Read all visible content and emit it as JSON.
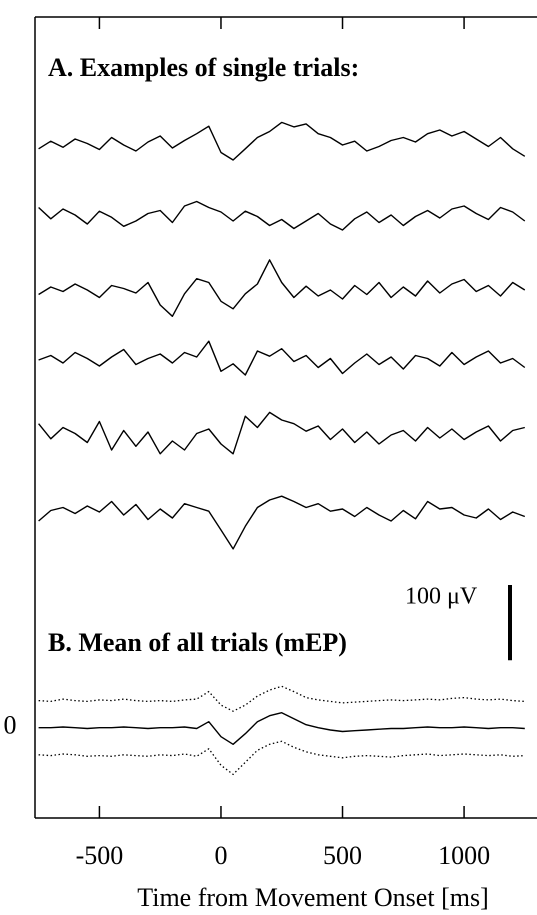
{
  "chart_data": [
    {
      "type": "line",
      "title": "A. Examples of single trials:",
      "x": [
        -750,
        -700,
        -650,
        -600,
        -550,
        -500,
        -450,
        -400,
        -350,
        -300,
        -250,
        -200,
        -150,
        -100,
        -50,
        0,
        50,
        100,
        150,
        200,
        250,
        300,
        350,
        400,
        450,
        500,
        550,
        600,
        650,
        700,
        750,
        800,
        850,
        900,
        950,
        1000,
        1050,
        1100,
        1150,
        1200,
        1250
      ],
      "xlim": [
        -765,
        1300
      ],
      "series": [
        {
          "color": "#000000",
          "values": [
            -5,
            5,
            -3,
            8,
            2,
            -6,
            10,
            0,
            -8,
            4,
            12,
            -4,
            6,
            15,
            25,
            -10,
            -20,
            -5,
            10,
            18,
            30,
            24,
            28,
            15,
            10,
            0,
            5,
            -8,
            -2,
            6,
            10,
            4,
            15,
            20,
            12,
            18,
            8,
            -2,
            10,
            -5,
            -15
          ]
        },
        {
          "color": "#000000",
          "values": [
            10,
            -5,
            8,
            0,
            -12,
            5,
            -3,
            -15,
            -8,
            2,
            6,
            -10,
            12,
            18,
            10,
            4,
            -8,
            5,
            -2,
            -14,
            -6,
            -18,
            -8,
            2,
            -12,
            -20,
            -5,
            4,
            -10,
            0,
            -14,
            -2,
            6,
            -4,
            8,
            12,
            2,
            -6,
            10,
            4,
            -8
          ]
        },
        {
          "color": "#000000",
          "values": [
            -6,
            4,
            -2,
            8,
            0,
            -10,
            6,
            2,
            -4,
            10,
            -20,
            -35,
            -5,
            15,
            10,
            -15,
            -25,
            -5,
            8,
            40,
            10,
            -10,
            5,
            -8,
            0,
            -12,
            6,
            -6,
            10,
            -10,
            4,
            -8,
            12,
            -4,
            8,
            14,
            -2,
            6,
            -8,
            10,
            0
          ]
        },
        {
          "color": "#000000",
          "values": [
            0,
            6,
            -4,
            10,
            2,
            -8,
            4,
            14,
            -6,
            2,
            8,
            -4,
            10,
            4,
            25,
            -15,
            -5,
            -20,
            12,
            5,
            15,
            -2,
            6,
            -10,
            2,
            -18,
            -4,
            8,
            -6,
            4,
            -12,
            6,
            2,
            -8,
            10,
            -6,
            4,
            12,
            -4,
            2,
            -10
          ]
        },
        {
          "color": "#000000",
          "values": [
            15,
            -5,
            10,
            2,
            -10,
            18,
            -20,
            6,
            -15,
            4,
            -25,
            -8,
            -20,
            2,
            8,
            -12,
            -25,
            25,
            10,
            30,
            20,
            15,
            5,
            12,
            -6,
            8,
            -10,
            4,
            -12,
            0,
            6,
            -8,
            10,
            -4,
            8,
            -6,
            4,
            12,
            -8,
            6,
            10
          ]
        },
        {
          "color": "#000000",
          "values": [
            -8,
            6,
            10,
            2,
            12,
            4,
            18,
            0,
            14,
            -6,
            8,
            -4,
            15,
            10,
            5,
            -20,
            -45,
            -15,
            10,
            20,
            25,
            18,
            10,
            15,
            5,
            8,
            -2,
            10,
            0,
            -8,
            6,
            -5,
            18,
            8,
            10,
            0,
            -4,
            8,
            -6,
            4,
            -2
          ]
        }
      ],
      "scale_bar": {
        "value": 100,
        "label": "100 μV"
      }
    },
    {
      "type": "line",
      "title": "B. Mean of all trials (mEP)",
      "x": [
        -750,
        -700,
        -650,
        -600,
        -550,
        -500,
        -450,
        -400,
        -350,
        -300,
        -250,
        -200,
        -150,
        -100,
        -50,
        0,
        50,
        100,
        150,
        200,
        250,
        300,
        350,
        400,
        450,
        500,
        550,
        600,
        650,
        700,
        750,
        800,
        850,
        900,
        950,
        1000,
        1050,
        1100,
        1150,
        1200,
        1250
      ],
      "xlim": [
        -765,
        1300
      ],
      "xticks": [
        -500,
        0,
        500,
        1000
      ],
      "xlabel": "Time from Movement Onset [ms]",
      "ylim": [
        -120,
        90
      ],
      "yticks": [
        0
      ],
      "series": [
        {
          "color": "#000000",
          "dash": "solid",
          "values": [
            0,
            0,
            1,
            0,
            -1,
            0,
            0,
            1,
            0,
            -1,
            0,
            0,
            1,
            -1,
            8,
            -12,
            -22,
            -8,
            8,
            16,
            20,
            12,
            4,
            0,
            -3,
            -5,
            -4,
            -3,
            -2,
            -1,
            -1,
            0,
            1,
            0,
            0,
            1,
            0,
            -1,
            0,
            0,
            -1
          ]
        },
        {
          "color": "#000000",
          "dash": "dotted",
          "values": [
            36,
            35,
            38,
            36,
            35,
            37,
            36,
            38,
            36,
            35,
            36,
            35,
            37,
            38,
            48,
            30,
            22,
            30,
            42,
            50,
            55,
            48,
            40,
            37,
            35,
            33,
            34,
            35,
            36,
            37,
            36,
            37,
            38,
            37,
            39,
            40,
            38,
            37,
            38,
            36,
            35
          ]
        },
        {
          "color": "#000000",
          "dash": "dotted",
          "values": [
            -36,
            -37,
            -35,
            -36,
            -38,
            -37,
            -38,
            -36,
            -37,
            -38,
            -36,
            -37,
            -35,
            -38,
            -28,
            -50,
            -62,
            -46,
            -30,
            -22,
            -18,
            -26,
            -32,
            -36,
            -38,
            -40,
            -38,
            -37,
            -38,
            -39,
            -37,
            -36,
            -35,
            -37,
            -36,
            -35,
            -36,
            -37,
            -36,
            -38,
            -37
          ]
        }
      ]
    }
  ]
}
